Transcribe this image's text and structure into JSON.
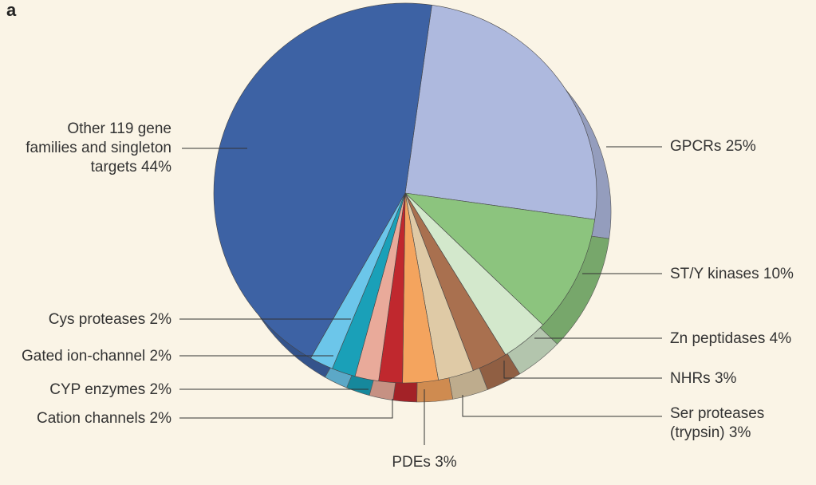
{
  "chart_data": {
    "type": "pie",
    "panel_label": "a",
    "categories": [
      "GPCRs",
      "ST/Y kinases",
      "Zn peptidases",
      "NHRs",
      "Ser proteases (trypsin)",
      "PDEs",
      "Cation channels",
      "CYP enzymes",
      "Gated ion-channel",
      "Cys proteases",
      "Other 119 gene families and singleton targets"
    ],
    "values": [
      25,
      10,
      4,
      3,
      3,
      3,
      2,
      2,
      2,
      2,
      44
    ],
    "value_labels": [
      "25%",
      "10%",
      "4%",
      "3%",
      "3%",
      "3%",
      "2%",
      "2%",
      "2%",
      "2%",
      "44%"
    ],
    "colors": [
      "#aeb9de",
      "#8cc47e",
      "#d3e8cc",
      "#a9704f",
      "#dfcaa6",
      "#f4a45e",
      "#c0282e",
      "#e9aa9a",
      "#1aa0b8",
      "#6cc6ea",
      "#3d62a4"
    ]
  }
}
